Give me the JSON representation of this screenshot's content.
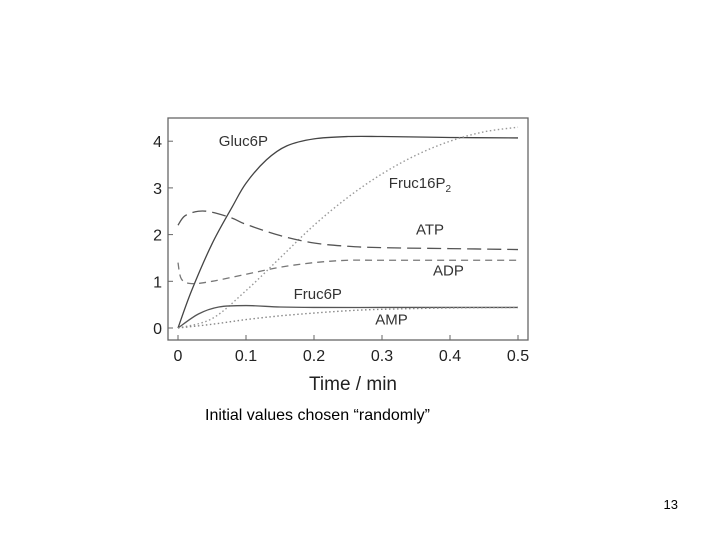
{
  "caption": "Initial values chosen “randomly”",
  "page_number": "13",
  "chart_data": {
    "type": "line",
    "title": "",
    "xlabel": "Time / min",
    "ylabel": "",
    "xlim": [
      0,
      0.5
    ],
    "ylim": [
      0,
      4.3
    ],
    "x_ticks": [
      "0",
      "0.1",
      "0.2",
      "0.3",
      "0.4",
      "0.5"
    ],
    "y_ticks": [
      "0",
      "1",
      "2",
      "3",
      "4"
    ],
    "grid": false,
    "legend": "inline labels",
    "series": [
      {
        "name": "Gluc6P",
        "style": "solid",
        "color": "#444444",
        "x": [
          0,
          0.02,
          0.05,
          0.08,
          0.1,
          0.13,
          0.16,
          0.2,
          0.25,
          0.3,
          0.4,
          0.5
        ],
        "y": [
          0,
          0.8,
          1.8,
          2.6,
          3.1,
          3.6,
          3.9,
          4.05,
          4.1,
          4.1,
          4.08,
          4.07
        ]
      },
      {
        "name": "Fruc16P2",
        "style": "dotted",
        "color": "#999999",
        "x": [
          0,
          0.05,
          0.1,
          0.15,
          0.2,
          0.25,
          0.3,
          0.35,
          0.4,
          0.45,
          0.5
        ],
        "y": [
          0,
          0.2,
          0.8,
          1.5,
          2.2,
          2.8,
          3.3,
          3.7,
          4.0,
          4.2,
          4.3
        ]
      },
      {
        "name": "ATP",
        "style": "long-dash",
        "color": "#555555",
        "x": [
          0,
          0.01,
          0.03,
          0.05,
          0.08,
          0.1,
          0.15,
          0.2,
          0.25,
          0.3,
          0.4,
          0.5
        ],
        "y": [
          2.2,
          2.4,
          2.5,
          2.48,
          2.35,
          2.22,
          1.98,
          1.82,
          1.75,
          1.72,
          1.7,
          1.68
        ]
      },
      {
        "name": "ADP",
        "style": "dash",
        "color": "#777777",
        "x": [
          0,
          0.005,
          0.02,
          0.05,
          0.1,
          0.15,
          0.2,
          0.25,
          0.3,
          0.4,
          0.5
        ],
        "y": [
          1.4,
          1.05,
          0.95,
          1.0,
          1.15,
          1.3,
          1.4,
          1.45,
          1.45,
          1.45,
          1.45
        ]
      },
      {
        "name": "Fruc6P",
        "style": "solid",
        "color": "#555555",
        "x": [
          0,
          0.03,
          0.06,
          0.1,
          0.15,
          0.2,
          0.3,
          0.4,
          0.5
        ],
        "y": [
          0,
          0.3,
          0.45,
          0.48,
          0.45,
          0.44,
          0.44,
          0.44,
          0.44
        ]
      },
      {
        "name": "AMP",
        "style": "dotted",
        "color": "#888888",
        "x": [
          0,
          0.05,
          0.1,
          0.15,
          0.2,
          0.25,
          0.3,
          0.4,
          0.5
        ],
        "y": [
          0,
          0.08,
          0.18,
          0.26,
          0.32,
          0.37,
          0.4,
          0.43,
          0.44
        ]
      }
    ],
    "annotations": [
      {
        "text": "Gluc6P",
        "x": 0.06,
        "y": 3.9
      },
      {
        "text": "Fruc16P",
        "sub": "2",
        "x": 0.31,
        "y": 3.0
      },
      {
        "text": "ATP",
        "x": 0.35,
        "y": 2.0
      },
      {
        "text": "ADP",
        "x": 0.375,
        "y": 1.12
      },
      {
        "text": "Fruc6P",
        "x": 0.17,
        "y": 0.62
      },
      {
        "text": "AMP",
        "x": 0.29,
        "y": 0.08
      }
    ]
  }
}
